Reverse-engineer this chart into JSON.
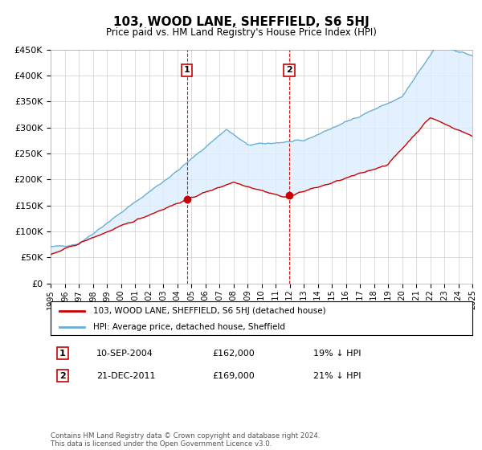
{
  "title": "103, WOOD LANE, SHEFFIELD, S6 5HJ",
  "subtitle": "Price paid vs. HM Land Registry's House Price Index (HPI)",
  "legend_line1": "103, WOOD LANE, SHEFFIELD, S6 5HJ (detached house)",
  "legend_line2": "HPI: Average price, detached house, Sheffield",
  "transaction1_date": "10-SEP-2004",
  "transaction1_price": "£162,000",
  "transaction1_hpi": "19% ↓ HPI",
  "transaction1_year": 2004.69,
  "transaction1_value": 162000,
  "transaction2_date": "21-DEC-2011",
  "transaction2_price": "£169,000",
  "transaction2_hpi": "21% ↓ HPI",
  "transaction2_year": 2011.97,
  "transaction2_value": 169000,
  "footer": "Contains HM Land Registry data © Crown copyright and database right 2024.\nThis data is licensed under the Open Government Licence v3.0.",
  "hpi_color": "#6baed6",
  "price_color": "#cc0000",
  "fill_color": "#ddeeff",
  "dashed_color": "#cc0000",
  "ylim": [
    0,
    450000
  ],
  "xlim": [
    1995,
    2025
  ],
  "background_color": "#ffffff",
  "grid_color": "#cccccc"
}
